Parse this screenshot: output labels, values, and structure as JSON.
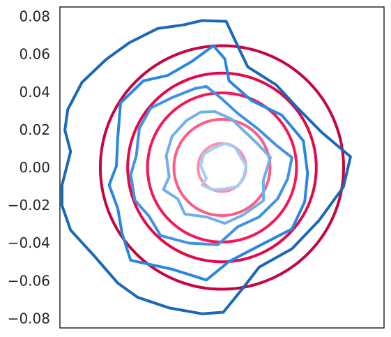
{
  "chart_data": {
    "type": "contour",
    "title": "",
    "xlabel": "",
    "ylabel": "",
    "xlim": [
      -0.085,
      0.085
    ],
    "ylim": [
      -0.085,
      0.085
    ],
    "x_ticks_shown": false,
    "y_ticks": [
      0.08,
      0.06,
      0.04,
      0.02,
      0.0,
      -0.02,
      -0.04,
      -0.06,
      -0.08
    ],
    "y_tick_labels": [
      "0.08",
      "0.06",
      "0.04",
      "0.02",
      "0.00",
      "−0.02",
      "−0.04",
      "−0.06",
      "−0.08"
    ],
    "grid": false,
    "legend": "none",
    "series": [
      {
        "name": "red-circles",
        "kind": "circle",
        "center": [
          0.0,
          0.0
        ],
        "radii": [
          0.0645,
          0.05,
          0.0395,
          0.0255,
          0.0127
        ],
        "colors": [
          "#c4073f",
          "#e3084a",
          "#f31957",
          "#fd5c85",
          "#fc8fad"
        ]
      },
      {
        "name": "blue-contours",
        "kind": "polygon",
        "levels": [
          {
            "color": "#1a68b8",
            "points": [
              [
                -0.0105,
                0.0778
              ],
              [
                -0.0202,
                0.0755
              ],
              [
                -0.0337,
                0.0736
              ],
              [
                -0.0487,
                0.066
              ],
              [
                -0.0607,
                0.0573
              ],
              [
                -0.0734,
                0.0451
              ],
              [
                -0.0809,
                0.0307
              ],
              [
                -0.0824,
                0.0198
              ],
              [
                -0.0794,
                0.0084
              ],
              [
                -0.0839,
                -0.0093
              ],
              [
                -0.0839,
                -0.0202
              ],
              [
                -0.0794,
                -0.0332
              ],
              [
                -0.0674,
                -0.0464
              ],
              [
                -0.0547,
                -0.0612
              ],
              [
                -0.0442,
                -0.0688
              ],
              [
                -0.0277,
                -0.0744
              ],
              [
                -0.0105,
                -0.0775
              ],
              [
                0.0007,
                -0.0767
              ],
              [
                0.0112,
                -0.0637
              ],
              [
                0.0195,
                -0.0528
              ],
              [
                0.0367,
                -0.0431
              ],
              [
                0.0509,
                -0.0281
              ],
              [
                0.0637,
                -0.0104
              ],
              [
                0.0674,
                0.0057
              ],
              [
                0.0524,
                0.0185
              ],
              [
                0.0389,
                0.0323
              ],
              [
                0.0285,
                0.0437
              ],
              [
                0.0135,
                0.0533
              ],
              [
                0.0082,
                0.0645
              ],
              [
                0.0022,
                0.0774
              ]
            ]
          },
          {
            "color": "#2a86e0",
            "points": [
              [
                -0.0045,
                0.0645
              ],
              [
                -0.0157,
                0.0562
              ],
              [
                -0.0285,
                0.0487
              ],
              [
                -0.0412,
                0.0459
              ],
              [
                -0.0532,
                0.0342
              ],
              [
                -0.0547,
                0.0155
              ],
              [
                -0.0554,
                0.0008
              ],
              [
                -0.0592,
                -0.0093
              ],
              [
                -0.0547,
                -0.0216
              ],
              [
                -0.0524,
                -0.035
              ],
              [
                -0.0479,
                -0.0492
              ],
              [
                -0.0262,
                -0.0539
              ],
              [
                -0.0082,
                -0.0596
              ],
              [
                0.0037,
                -0.0498
              ],
              [
                0.0195,
                -0.0415
              ],
              [
                0.0367,
                -0.0326
              ],
              [
                0.0434,
                -0.0182
              ],
              [
                0.0449,
                -0.0031
              ],
              [
                0.0427,
                0.0141
              ],
              [
                0.0314,
                0.0277
              ],
              [
                0.0157,
                0.0353
              ],
              [
                0.0037,
                0.0459
              ],
              [
                0.0015,
                0.0575
              ]
            ]
          },
          {
            "color": "#3f93e3",
            "points": [
              [
                -0.0142,
                0.0418
              ],
              [
                -0.0262,
                0.037
              ],
              [
                -0.0374,
                0.0315
              ],
              [
                -0.0434,
                0.0206
              ],
              [
                -0.0449,
                0.0064
              ],
              [
                -0.0479,
                -0.0039
              ],
              [
                -0.0457,
                -0.0174
              ],
              [
                -0.0382,
                -0.0259
              ],
              [
                -0.0322,
                -0.0361
              ],
              [
                -0.0172,
                -0.0401
              ],
              [
                -0.0022,
                -0.0409
              ],
              [
                0.0082,
                -0.0315
              ],
              [
                0.0195,
                -0.0262
              ],
              [
                0.0292,
                -0.0166
              ],
              [
                0.0344,
                -0.0061
              ],
              [
                0.0367,
                0.0053
              ],
              [
                0.0285,
                0.0117
              ],
              [
                0.0187,
                0.0206
              ],
              [
                0.0082,
                0.0287
              ],
              [
                -0.0007,
                0.0369
              ],
              [
                -0.0082,
                0.0429
              ]
            ]
          },
          {
            "color": "#6fb0ea",
            "points": [
              [
                -0.0037,
                0.0296
              ],
              [
                -0.0112,
                0.0293
              ],
              [
                -0.0187,
                0.0248
              ],
              [
                -0.0262,
                0.0165
              ],
              [
                -0.0292,
                0.0064
              ],
              [
                -0.0277,
                -0.0049
              ],
              [
                -0.0307,
                -0.0117
              ],
              [
                -0.0232,
                -0.0166
              ],
              [
                -0.0195,
                -0.0247
              ],
              [
                -0.0082,
                -0.0262
              ],
              [
                0.0015,
                -0.0296
              ],
              [
                0.0112,
                -0.0251
              ],
              [
                0.0217,
                -0.0176
              ],
              [
                0.0217,
                -0.0066
              ],
              [
                0.0254,
                0.0053
              ],
              [
                0.0187,
                0.0125
              ],
              [
                0.0112,
                0.0197
              ],
              [
                0.0052,
                0.0255
              ]
            ]
          },
          {
            "color": "#a6cdf1",
            "points": [
              [
                0.0015,
                0.0127
              ],
              [
                -0.0045,
                0.0102
              ],
              [
                -0.0097,
                0.0069
              ],
              [
                -0.0112,
                0.0008
              ],
              [
                -0.0082,
                -0.0058
              ],
              [
                -0.0105,
                -0.0093
              ],
              [
                -0.0052,
                -0.0117
              ],
              [
                0.0015,
                -0.0113
              ],
              [
                0.0082,
                -0.0101
              ],
              [
                0.0112,
                -0.0054
              ],
              [
                0.0127,
                0.0008
              ],
              [
                0.0097,
                0.0058
              ],
              [
                0.0067,
                0.0108
              ]
            ]
          }
        ]
      }
    ]
  }
}
